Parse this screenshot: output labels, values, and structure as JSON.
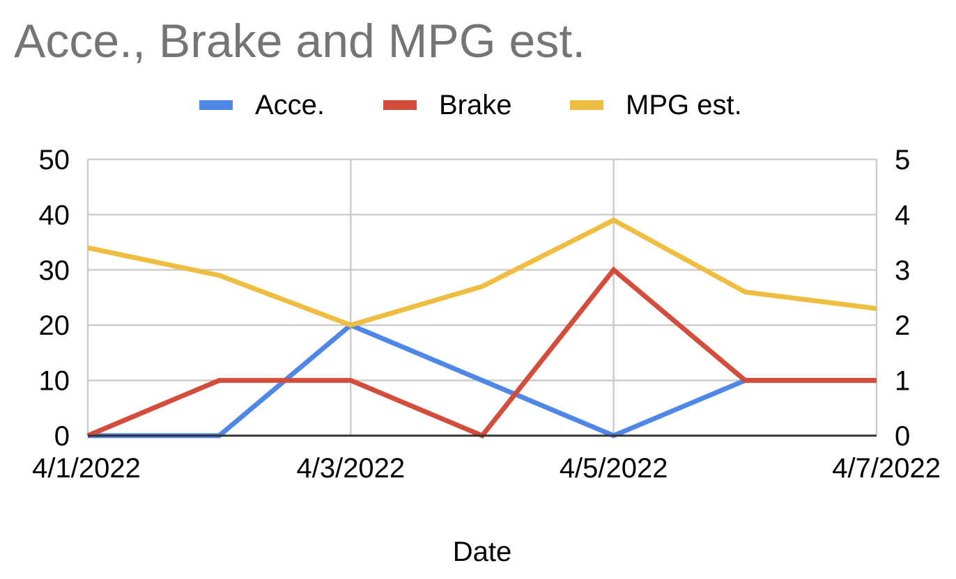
{
  "chart_data": {
    "type": "line",
    "title": "Acce., Brake and MPG est.",
    "xlabel": "Date",
    "ylabel": "",
    "y2label": "",
    "categories": [
      "4/1/2022",
      "4/2/2022",
      "4/3/2022",
      "4/4/2022",
      "4/5/2022",
      "4/6/2022",
      "4/7/2022"
    ],
    "x_tick_labels": [
      "4/1/2022",
      "4/3/2022",
      "4/5/2022",
      "4/7/2022"
    ],
    "ylim": [
      0,
      50
    ],
    "y_ticks": [
      0,
      10,
      20,
      30,
      40,
      50
    ],
    "y2lim": [
      0,
      5
    ],
    "y2_ticks": [
      0,
      1,
      2,
      3,
      4,
      5
    ],
    "grid": true,
    "legend_position": "top",
    "series": [
      {
        "name": "Acce.",
        "axis": "left",
        "color": "#4e87e8",
        "values": [
          0,
          0,
          20,
          10,
          0,
          10,
          10
        ]
      },
      {
        "name": "Brake",
        "axis": "left",
        "color": "#d44c3b",
        "values": [
          0,
          10,
          10,
          0,
          30,
          10,
          10
        ]
      },
      {
        "name": "MPG est.",
        "axis": "left",
        "color": "#efbd3f",
        "values": [
          34,
          29,
          20,
          27,
          39,
          26,
          23
        ]
      }
    ]
  }
}
